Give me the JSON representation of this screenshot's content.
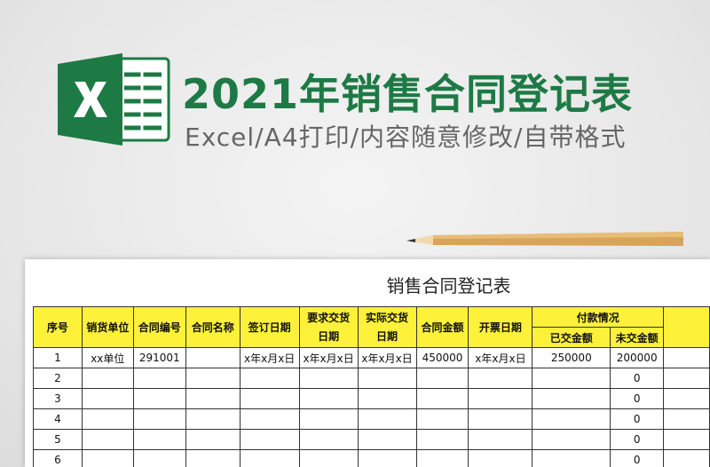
{
  "header": {
    "title": "2021年销售合同登记表",
    "subtitle": "Excel/A4打印/内容随意修改/自带格式"
  },
  "sheet": {
    "title": "销售合同登记表",
    "columns": [
      "序号",
      "销货单位",
      "合同编号",
      "合同名称",
      "签订日期",
      "要求交货日期",
      "实际交货日期",
      "合同金额",
      "开票日期"
    ],
    "payment_group": "付款情况",
    "payment_columns": [
      "已交金额",
      "未交金额"
    ],
    "rows": [
      {
        "no": 1,
        "unit": "xx单位",
        "contract_no": "291001",
        "sign_date": "x年x月x日",
        "req_date": "x年x月x日",
        "act_date": "x年x月x日",
        "amount": 450000,
        "invoice_date": "x年x月x日",
        "paid": 250000,
        "unpaid": 200000
      },
      {
        "no": 2,
        "unpaid": 0
      },
      {
        "no": 3,
        "unpaid": 0
      },
      {
        "no": 4,
        "unpaid": 0
      },
      {
        "no": 5,
        "unpaid": 0
      },
      {
        "no": 6,
        "unpaid": 0
      }
    ]
  }
}
